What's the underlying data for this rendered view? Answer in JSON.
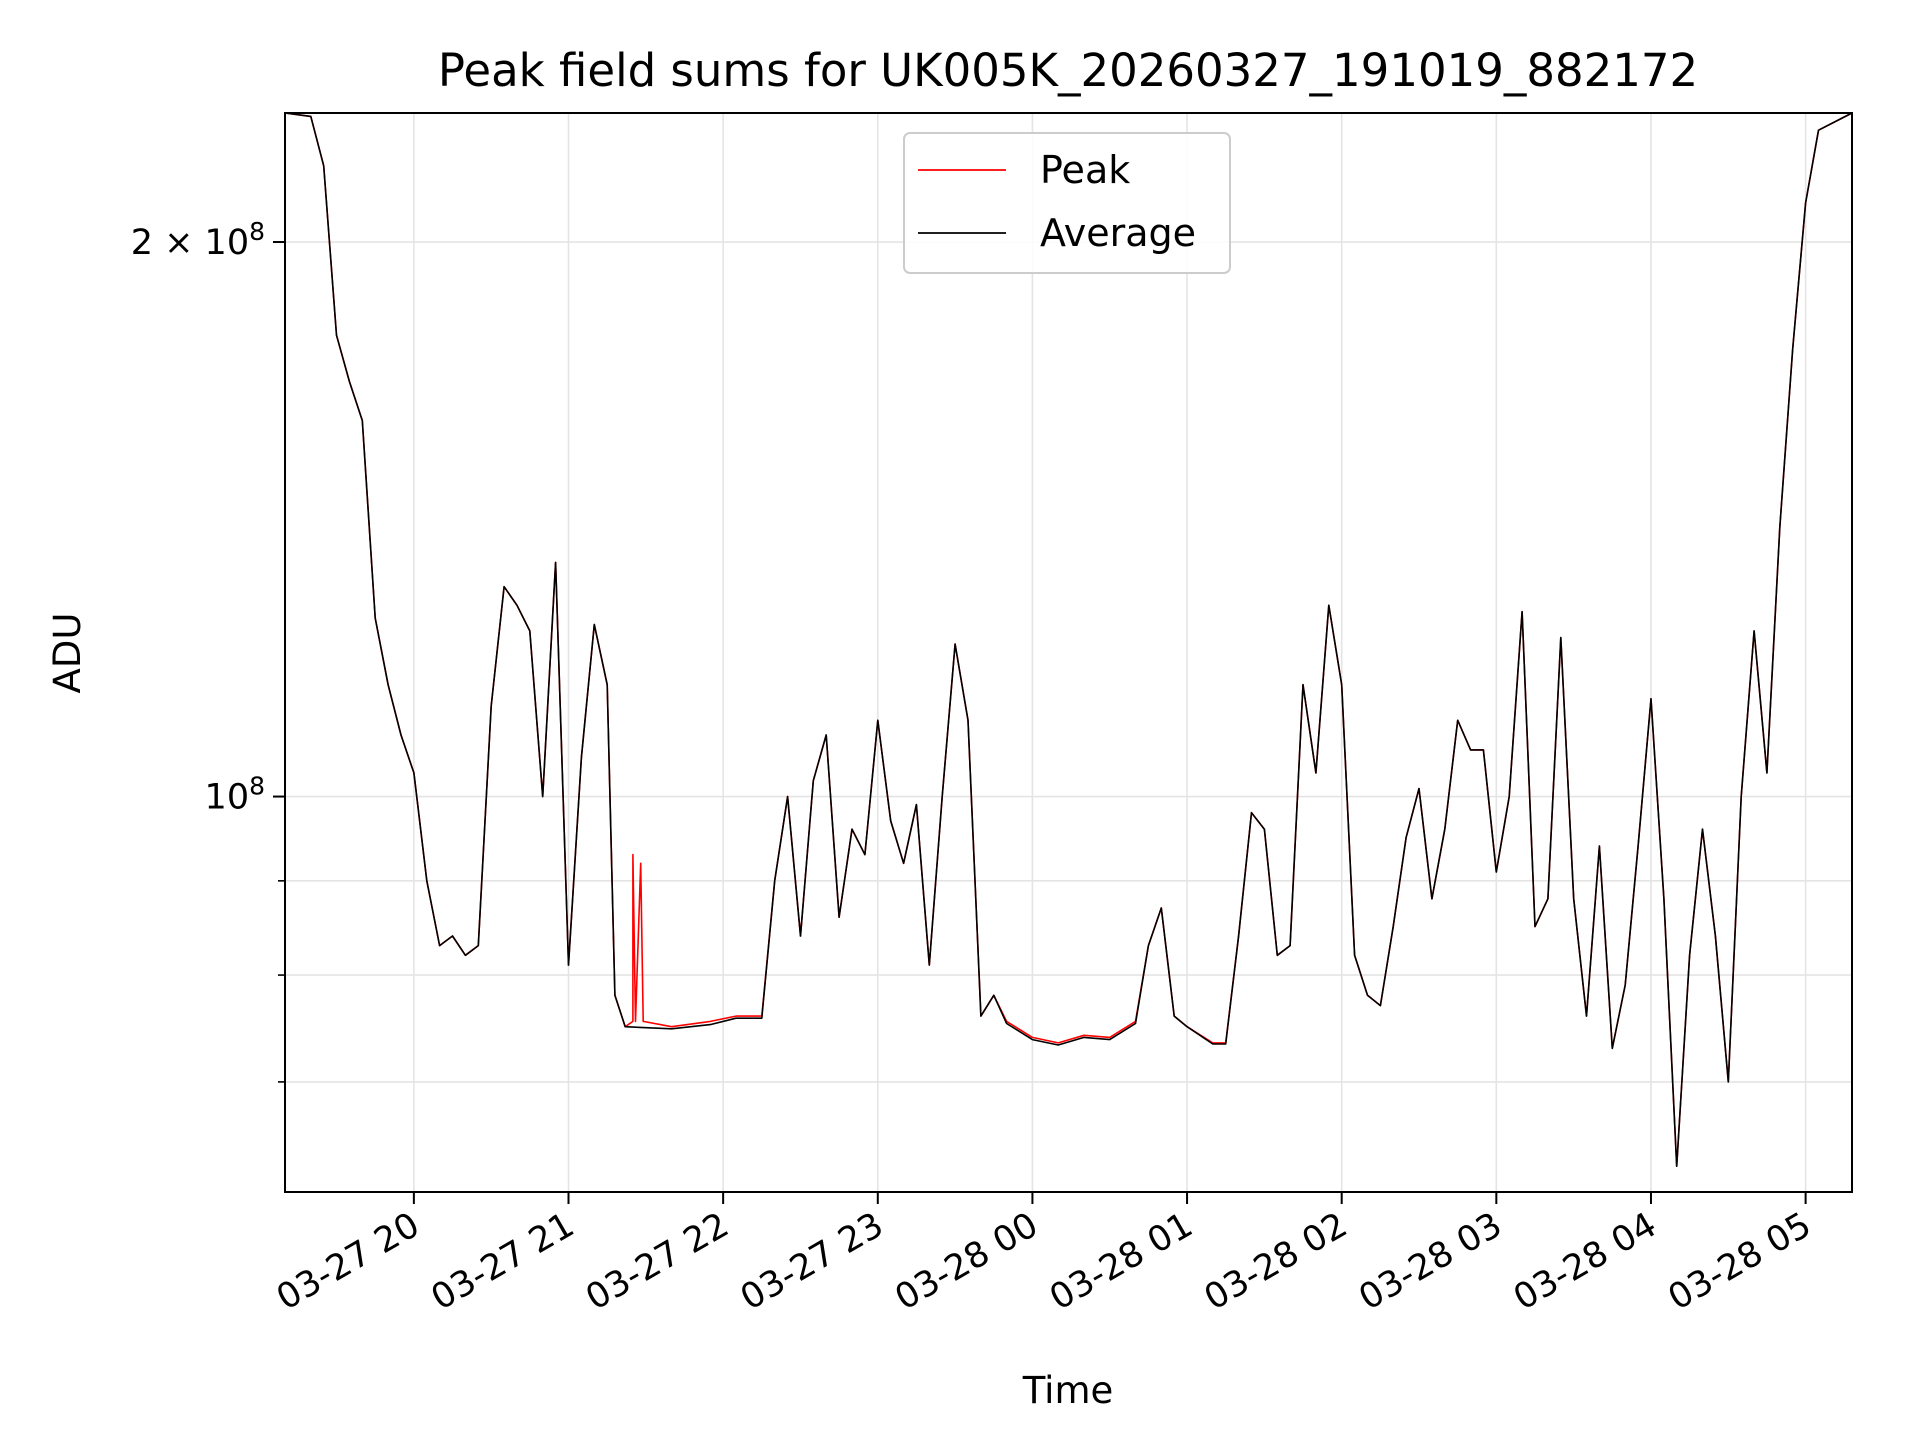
{
  "chart_data": {
    "type": "line",
    "title": "Peak field sums for UK005K_20260327_191019_882172",
    "xlabel": "Time",
    "ylabel": "ADU",
    "y_scale": "log",
    "ylim": [
      61000000,
      235000000
    ],
    "xlim": [
      "2026-03-27 19:10",
      "2026-03-28 05:18"
    ],
    "grid": true,
    "legend_position": "top-center",
    "x_ticks": [
      {
        "at": "2026-03-27 20:00",
        "label": "03-27 20"
      },
      {
        "at": "2026-03-27 21:00",
        "label": "03-27 21"
      },
      {
        "at": "2026-03-27 22:00",
        "label": "03-27 22"
      },
      {
        "at": "2026-03-27 23:00",
        "label": "03-27 23"
      },
      {
        "at": "2026-03-28 00:00",
        "label": "03-28 00"
      },
      {
        "at": "2026-03-28 01:00",
        "label": "03-28 01"
      },
      {
        "at": "2026-03-28 02:00",
        "label": "03-28 02"
      },
      {
        "at": "2026-03-28 03:00",
        "label": "03-28 03"
      },
      {
        "at": "2026-03-28 04:00",
        "label": "03-28 04"
      },
      {
        "at": "2026-03-28 05:00",
        "label": "03-28 05"
      }
    ],
    "y_ticks_labeled": [
      {
        "value": 100000000,
        "base": "10",
        "exp": "8",
        "mult": ""
      },
      {
        "value": 200000000,
        "base": "10",
        "exp": "8",
        "mult": "2 × "
      }
    ],
    "y_minor_gridlines": [
      70000000,
      80000000,
      90000000
    ],
    "series": [
      {
        "name": "Peak",
        "color": "#ff0000",
        "points": [
          [
            "2026-03-27 19:10",
            235000000
          ],
          [
            "2026-03-27 19:20",
            234000000
          ],
          [
            "2026-03-27 19:25",
            220000000
          ],
          [
            "2026-03-27 19:30",
            178000000
          ],
          [
            "2026-03-27 19:35",
            168000000
          ],
          [
            "2026-03-27 19:40",
            160000000
          ],
          [
            "2026-03-27 19:45",
            125000000
          ],
          [
            "2026-03-27 19:50",
            115000000
          ],
          [
            "2026-03-27 19:55",
            108000000
          ],
          [
            "2026-03-27 20:00",
            103000000
          ],
          [
            "2026-03-27 20:05",
            90000000
          ],
          [
            "2026-03-27 20:10",
            83000000
          ],
          [
            "2026-03-27 20:15",
            84000000
          ],
          [
            "2026-03-27 20:20",
            82000000
          ],
          [
            "2026-03-27 20:25",
            83000000
          ],
          [
            "2026-03-27 20:30",
            112000000
          ],
          [
            "2026-03-27 20:35",
            130000000
          ],
          [
            "2026-03-27 20:40",
            127000000
          ],
          [
            "2026-03-27 20:45",
            123000000
          ],
          [
            "2026-03-27 20:50",
            100000000
          ],
          [
            "2026-03-27 20:55",
            134000000
          ],
          [
            "2026-03-27 21:00",
            81000000
          ],
          [
            "2026-03-27 21:05",
            105000000
          ],
          [
            "2026-03-27 21:10",
            124000000
          ],
          [
            "2026-03-27 21:15",
            115000000
          ],
          [
            "2026-03-27 21:18",
            78000000
          ],
          [
            "2026-03-27 21:22",
            75000000
          ],
          [
            "2026-03-27 21:25",
            75500000
          ],
          [
            "2026-03-27 21:25",
            93000000
          ],
          [
            "2026-03-27 21:26",
            75500000
          ],
          [
            "2026-03-27 21:28",
            92000000
          ],
          [
            "2026-03-27 21:29",
            75500000
          ],
          [
            "2026-03-27 21:40",
            75000000
          ],
          [
            "2026-03-27 21:55",
            75500000
          ],
          [
            "2026-03-27 22:05",
            76000000
          ],
          [
            "2026-03-27 22:15",
            76000000
          ],
          [
            "2026-03-27 22:20",
            90000000
          ],
          [
            "2026-03-27 22:25",
            100000000
          ],
          [
            "2026-03-27 22:30",
            84000000
          ],
          [
            "2026-03-27 22:35",
            102000000
          ],
          [
            "2026-03-27 22:40",
            108000000
          ],
          [
            "2026-03-27 22:45",
            86000000
          ],
          [
            "2026-03-27 22:50",
            96000000
          ],
          [
            "2026-03-27 22:55",
            93000000
          ],
          [
            "2026-03-27 23:00",
            110000000
          ],
          [
            "2026-03-27 23:05",
            97000000
          ],
          [
            "2026-03-27 23:10",
            92000000
          ],
          [
            "2026-03-27 23:15",
            99000000
          ],
          [
            "2026-03-27 23:20",
            81000000
          ],
          [
            "2026-03-27 23:25",
            100000000
          ],
          [
            "2026-03-27 23:30",
            121000000
          ],
          [
            "2026-03-27 23:35",
            110000000
          ],
          [
            "2026-03-27 23:40",
            76000000
          ],
          [
            "2026-03-27 23:45",
            78000000
          ],
          [
            "2026-03-27 23:50",
            75500000
          ],
          [
            "2026-03-28 00:00",
            74000000
          ],
          [
            "2026-03-28 00:10",
            73500000
          ],
          [
            "2026-03-28 00:20",
            74200000
          ],
          [
            "2026-03-28 00:30",
            74000000
          ],
          [
            "2026-03-28 00:40",
            75500000
          ],
          [
            "2026-03-28 00:45",
            83000000
          ],
          [
            "2026-03-28 00:50",
            87000000
          ],
          [
            "2026-03-28 00:55",
            76000000
          ],
          [
            "2026-03-28 01:00",
            75000000
          ],
          [
            "2026-03-28 01:10",
            73500000
          ],
          [
            "2026-03-28 01:15",
            73500000
          ],
          [
            "2026-03-28 01:20",
            84000000
          ],
          [
            "2026-03-28 01:25",
            98000000
          ],
          [
            "2026-03-28 01:30",
            96000000
          ],
          [
            "2026-03-28 01:35",
            82000000
          ],
          [
            "2026-03-28 01:40",
            83000000
          ],
          [
            "2026-03-28 01:45",
            115000000
          ],
          [
            "2026-03-28 01:50",
            103000000
          ],
          [
            "2026-03-28 01:55",
            127000000
          ],
          [
            "2026-03-28 02:00",
            115000000
          ],
          [
            "2026-03-28 02:05",
            82000000
          ],
          [
            "2026-03-28 02:10",
            78000000
          ],
          [
            "2026-03-28 02:15",
            77000000
          ],
          [
            "2026-03-28 02:20",
            85000000
          ],
          [
            "2026-03-28 02:25",
            95000000
          ],
          [
            "2026-03-28 02:30",
            101000000
          ],
          [
            "2026-03-28 02:35",
            88000000
          ],
          [
            "2026-03-28 02:40",
            96000000
          ],
          [
            "2026-03-28 02:45",
            110000000
          ],
          [
            "2026-03-28 02:50",
            106000000
          ],
          [
            "2026-03-28 02:55",
            106000000
          ],
          [
            "2026-03-28 03:00",
            91000000
          ],
          [
            "2026-03-28 03:05",
            100000000
          ],
          [
            "2026-03-28 03:10",
            126000000
          ],
          [
            "2026-03-28 03:15",
            85000000
          ],
          [
            "2026-03-28 03:20",
            88000000
          ],
          [
            "2026-03-28 03:25",
            122000000
          ],
          [
            "2026-03-28 03:30",
            88000000
          ],
          [
            "2026-03-28 03:35",
            76000000
          ],
          [
            "2026-03-28 03:40",
            94000000
          ],
          [
            "2026-03-28 03:45",
            73000000
          ],
          [
            "2026-03-28 03:50",
            79000000
          ],
          [
            "2026-03-28 03:55",
            94000000
          ],
          [
            "2026-03-28 04:00",
            113000000
          ],
          [
            "2026-03-28 04:05",
            88000000
          ],
          [
            "2026-03-28 04:10",
            63000000
          ],
          [
            "2026-03-28 04:15",
            82000000
          ],
          [
            "2026-03-28 04:20",
            96000000
          ],
          [
            "2026-03-28 04:25",
            84000000
          ],
          [
            "2026-03-28 04:30",
            70000000
          ],
          [
            "2026-03-28 04:35",
            100000000
          ],
          [
            "2026-03-28 04:40",
            123000000
          ],
          [
            "2026-03-28 04:45",
            103000000
          ],
          [
            "2026-03-28 04:50",
            140000000
          ],
          [
            "2026-03-28 04:55",
            175000000
          ],
          [
            "2026-03-28 05:00",
            210000000
          ],
          [
            "2026-03-28 05:05",
            230000000
          ],
          [
            "2026-03-28 05:18",
            235000000
          ]
        ]
      },
      {
        "name": "Average",
        "color": "#000000",
        "points": [
          [
            "2026-03-27 19:10",
            235000000
          ],
          [
            "2026-03-27 19:20",
            234000000
          ],
          [
            "2026-03-27 19:25",
            220000000
          ],
          [
            "2026-03-27 19:30",
            178000000
          ],
          [
            "2026-03-27 19:35",
            168000000
          ],
          [
            "2026-03-27 19:40",
            160000000
          ],
          [
            "2026-03-27 19:45",
            125000000
          ],
          [
            "2026-03-27 19:50",
            115000000
          ],
          [
            "2026-03-27 19:55",
            108000000
          ],
          [
            "2026-03-27 20:00",
            103000000
          ],
          [
            "2026-03-27 20:05",
            90000000
          ],
          [
            "2026-03-27 20:10",
            83000000
          ],
          [
            "2026-03-27 20:15",
            84000000
          ],
          [
            "2026-03-27 20:20",
            82000000
          ],
          [
            "2026-03-27 20:25",
            83000000
          ],
          [
            "2026-03-27 20:30",
            112000000
          ],
          [
            "2026-03-27 20:35",
            130000000
          ],
          [
            "2026-03-27 20:40",
            127000000
          ],
          [
            "2026-03-27 20:45",
            123000000
          ],
          [
            "2026-03-27 20:50",
            100000000
          ],
          [
            "2026-03-27 20:55",
            134000000
          ],
          [
            "2026-03-27 21:00",
            81000000
          ],
          [
            "2026-03-27 21:05",
            105000000
          ],
          [
            "2026-03-27 21:10",
            124000000
          ],
          [
            "2026-03-27 21:15",
            115000000
          ],
          [
            "2026-03-27 21:18",
            78000000
          ],
          [
            "2026-03-27 21:22",
            75000000
          ],
          [
            "2026-03-27 21:40",
            74800000
          ],
          [
            "2026-03-27 21:55",
            75200000
          ],
          [
            "2026-03-27 22:05",
            75800000
          ],
          [
            "2026-03-27 22:15",
            75800000
          ],
          [
            "2026-03-27 22:20",
            90000000
          ],
          [
            "2026-03-27 22:25",
            100000000
          ],
          [
            "2026-03-27 22:30",
            84000000
          ],
          [
            "2026-03-27 22:35",
            102000000
          ],
          [
            "2026-03-27 22:40",
            108000000
          ],
          [
            "2026-03-27 22:45",
            86000000
          ],
          [
            "2026-03-27 22:50",
            96000000
          ],
          [
            "2026-03-27 22:55",
            93000000
          ],
          [
            "2026-03-27 23:00",
            110000000
          ],
          [
            "2026-03-27 23:05",
            97000000
          ],
          [
            "2026-03-27 23:10",
            92000000
          ],
          [
            "2026-03-27 23:15",
            99000000
          ],
          [
            "2026-03-27 23:20",
            81000000
          ],
          [
            "2026-03-27 23:25",
            100000000
          ],
          [
            "2026-03-27 23:30",
            121000000
          ],
          [
            "2026-03-27 23:35",
            110000000
          ],
          [
            "2026-03-27 23:40",
            76000000
          ],
          [
            "2026-03-27 23:45",
            78000000
          ],
          [
            "2026-03-27 23:50",
            75300000
          ],
          [
            "2026-03-28 00:00",
            73800000
          ],
          [
            "2026-03-28 00:10",
            73300000
          ],
          [
            "2026-03-28 00:20",
            74000000
          ],
          [
            "2026-03-28 00:30",
            73800000
          ],
          [
            "2026-03-28 00:40",
            75300000
          ],
          [
            "2026-03-28 00:45",
            83000000
          ],
          [
            "2026-03-28 00:50",
            87000000
          ],
          [
            "2026-03-28 00:55",
            76000000
          ],
          [
            "2026-03-28 01:00",
            75000000
          ],
          [
            "2026-03-28 01:10",
            73400000
          ],
          [
            "2026-03-28 01:15",
            73400000
          ],
          [
            "2026-03-28 01:20",
            84000000
          ],
          [
            "2026-03-28 01:25",
            98000000
          ],
          [
            "2026-03-28 01:30",
            96000000
          ],
          [
            "2026-03-28 01:35",
            82000000
          ],
          [
            "2026-03-28 01:40",
            83000000
          ],
          [
            "2026-03-28 01:45",
            115000000
          ],
          [
            "2026-03-28 01:50",
            103000000
          ],
          [
            "2026-03-28 01:55",
            127000000
          ],
          [
            "2026-03-28 02:00",
            115000000
          ],
          [
            "2026-03-28 02:05",
            82000000
          ],
          [
            "2026-03-28 02:10",
            78000000
          ],
          [
            "2026-03-28 02:15",
            77000000
          ],
          [
            "2026-03-28 02:20",
            85000000
          ],
          [
            "2026-03-28 02:25",
            95000000
          ],
          [
            "2026-03-28 02:30",
            101000000
          ],
          [
            "2026-03-28 02:35",
            88000000
          ],
          [
            "2026-03-28 02:40",
            96000000
          ],
          [
            "2026-03-28 02:45",
            110000000
          ],
          [
            "2026-03-28 02:50",
            106000000
          ],
          [
            "2026-03-28 02:55",
            106000000
          ],
          [
            "2026-03-28 03:00",
            91000000
          ],
          [
            "2026-03-28 03:05",
            100000000
          ],
          [
            "2026-03-28 03:10",
            126000000
          ],
          [
            "2026-03-28 03:15",
            85000000
          ],
          [
            "2026-03-28 03:20",
            88000000
          ],
          [
            "2026-03-28 03:25",
            122000000
          ],
          [
            "2026-03-28 03:30",
            88000000
          ],
          [
            "2026-03-28 03:35",
            76000000
          ],
          [
            "2026-03-28 03:40",
            94000000
          ],
          [
            "2026-03-28 03:45",
            73000000
          ],
          [
            "2026-03-28 03:50",
            79000000
          ],
          [
            "2026-03-28 03:55",
            94000000
          ],
          [
            "2026-03-28 04:00",
            113000000
          ],
          [
            "2026-03-28 04:05",
            88000000
          ],
          [
            "2026-03-28 04:10",
            63000000
          ],
          [
            "2026-03-28 04:15",
            82000000
          ],
          [
            "2026-03-28 04:20",
            96000000
          ],
          [
            "2026-03-28 04:25",
            84000000
          ],
          [
            "2026-03-28 04:30",
            70000000
          ],
          [
            "2026-03-28 04:35",
            100000000
          ],
          [
            "2026-03-28 04:40",
            123000000
          ],
          [
            "2026-03-28 04:45",
            103000000
          ],
          [
            "2026-03-28 04:50",
            140000000
          ],
          [
            "2026-03-28 04:55",
            175000000
          ],
          [
            "2026-03-28 05:00",
            210000000
          ],
          [
            "2026-03-28 05:05",
            230000000
          ],
          [
            "2026-03-28 05:18",
            235000000
          ]
        ]
      }
    ]
  }
}
